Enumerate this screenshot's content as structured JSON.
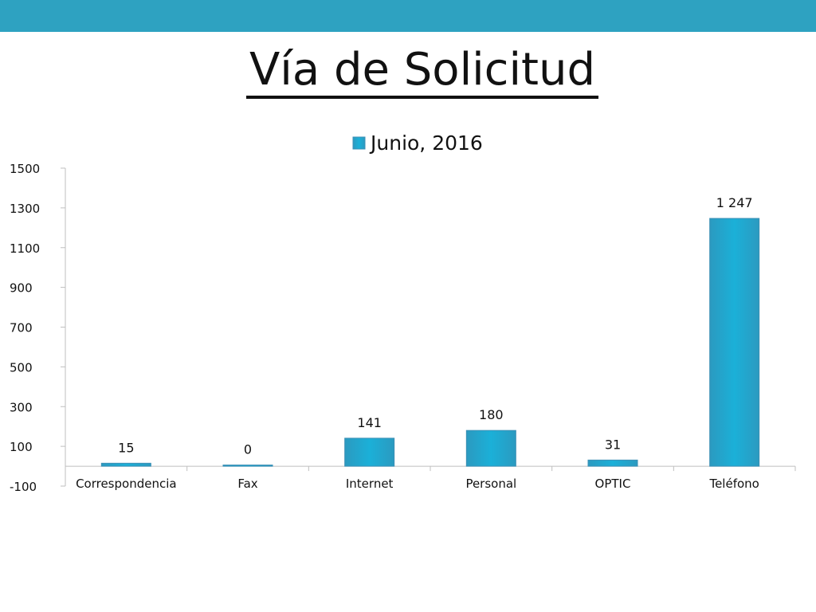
{
  "title": "Vía de Solicitud",
  "colors": {
    "top_bar": "#2ea2c1",
    "bar_fill": "#1ea6cc",
    "bar_edge": "#3b8fb5",
    "axis": "#bfbfbf"
  },
  "chart_data": {
    "type": "bar",
    "title": "Vía de Solicitud",
    "categories": [
      "Correspondencia",
      "Fax",
      "Internet",
      "Personal",
      "OPTIC",
      "Teléfono"
    ],
    "series": [
      {
        "name": "Junio, 2016",
        "values": [
          15,
          0,
          141,
          180,
          31,
          1247
        ],
        "labels": [
          "15",
          "0",
          "141",
          "180",
          "31",
          "1 247"
        ]
      }
    ],
    "ylim": [
      -100,
      1500
    ],
    "yticks": [
      -100,
      100,
      300,
      500,
      700,
      900,
      1100,
      1300,
      1500
    ],
    "legend": "top-center",
    "grid": false,
    "xlabel": "",
    "ylabel": ""
  }
}
